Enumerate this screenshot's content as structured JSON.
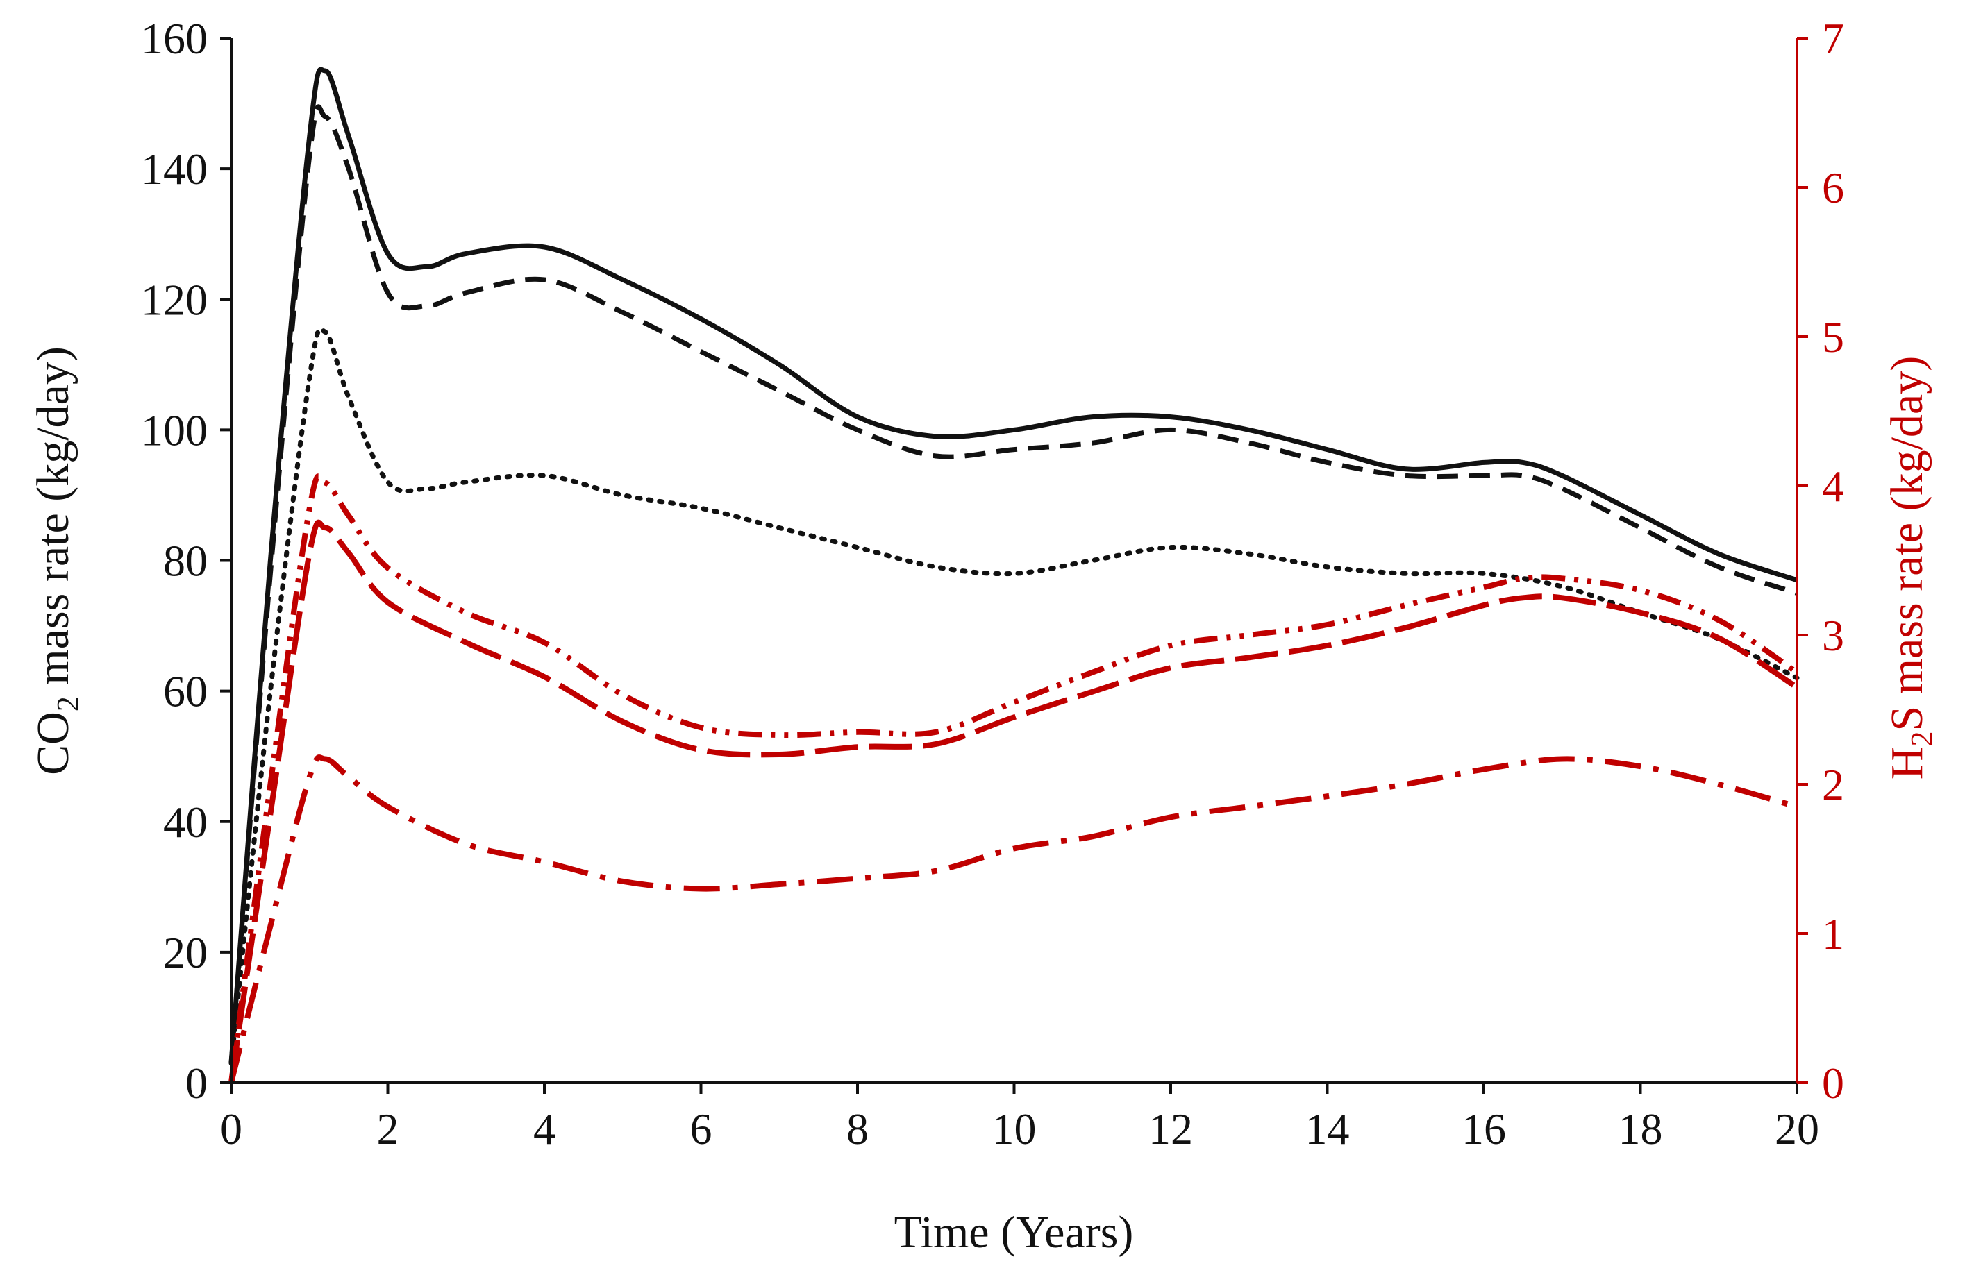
{
  "colors": {
    "co2": "#111111",
    "h2s": "#c00000"
  },
  "chart_data": {
    "type": "line",
    "title": "",
    "xlabel": "Time (Years)",
    "ylabel_left": {
      "prefix": "CO",
      "sub": "2",
      "suffix": " mass rate (kg/day)"
    },
    "ylabel_right": {
      "prefix": "H",
      "sub": "2",
      "suffix": "S mass rate (kg/day)"
    },
    "xlim": [
      0,
      20
    ],
    "ylim_left": [
      0,
      160
    ],
    "ylim_right": [
      0,
      7
    ],
    "xticks": [
      0,
      2,
      4,
      6,
      8,
      10,
      12,
      14,
      16,
      18,
      20
    ],
    "yticks_left": [
      0,
      20,
      40,
      60,
      80,
      100,
      120,
      140,
      160
    ],
    "yticks_right": [
      0,
      1,
      2,
      3,
      4,
      5,
      6,
      7
    ],
    "grid": false,
    "series": [
      {
        "name": "co2-solid",
        "axis": "left",
        "color": "#111111",
        "dash": "solid",
        "x": [
          0,
          0.5,
          1.0,
          1.2,
          1.5,
          2.0,
          2.5,
          3.0,
          4.0,
          5.0,
          6.0,
          7.0,
          8.0,
          9.0,
          10.0,
          11.0,
          12.0,
          13.0,
          14.0,
          15.0,
          16.0,
          16.5,
          17.0,
          18.0,
          19.0,
          20.0
        ],
        "y": [
          3,
          80,
          145,
          155,
          145,
          127,
          125,
          127,
          128,
          123,
          117,
          110,
          102,
          99,
          100,
          102,
          102,
          100,
          97,
          94,
          95,
          95,
          93,
          87,
          81,
          77
        ]
      },
      {
        "name": "co2-dashed",
        "axis": "left",
        "color": "#111111",
        "dash": "dashed",
        "x": [
          0,
          0.5,
          1.0,
          1.2,
          1.5,
          2.0,
          2.5,
          3.0,
          4.0,
          5.0,
          6.0,
          7.0,
          8.0,
          9.0,
          10.0,
          11.0,
          12.0,
          13.0,
          14.0,
          15.0,
          16.0,
          16.5,
          17.0,
          18.0,
          19.0,
          20.0
        ],
        "y": [
          3,
          78,
          142,
          148,
          140,
          121,
          119,
          121,
          123,
          118,
          112,
          106,
          100,
          96,
          97,
          98,
          100,
          98,
          95,
          93,
          93,
          93,
          91,
          85,
          79,
          75
        ]
      },
      {
        "name": "co2-dotted",
        "axis": "left",
        "color": "#111111",
        "dash": "dotted",
        "x": [
          0,
          0.5,
          1.0,
          1.2,
          1.5,
          2.0,
          2.5,
          3.0,
          4.0,
          5.0,
          6.0,
          7.0,
          8.0,
          9.0,
          10.0,
          11.0,
          12.0,
          13.0,
          14.0,
          15.0,
          16.0,
          17.0,
          18.0,
          19.0,
          20.0
        ],
        "y": [
          3,
          60,
          108,
          115,
          105,
          92,
          91,
          92,
          93,
          90,
          88,
          85,
          82,
          79,
          78,
          80,
          82,
          81,
          79,
          78,
          78,
          76,
          72,
          68,
          62
        ]
      },
      {
        "name": "h2s-dashdotdot",
        "axis": "right",
        "color": "#c00000",
        "dash": "dashdotdot",
        "x": [
          0,
          0.5,
          1.0,
          1.2,
          1.5,
          2.0,
          3.0,
          4.0,
          5.0,
          6.0,
          7.0,
          8.0,
          9.0,
          10.0,
          11.0,
          12.0,
          13.0,
          14.0,
          15.0,
          16.0,
          16.5,
          17.0,
          18.0,
          19.0,
          20.0
        ],
        "y": [
          0,
          2.0,
          3.85,
          4.02,
          3.8,
          3.45,
          3.15,
          2.95,
          2.6,
          2.38,
          2.33,
          2.35,
          2.35,
          2.55,
          2.75,
          2.93,
          3.0,
          3.07,
          3.2,
          3.32,
          3.38,
          3.38,
          3.3,
          3.1,
          2.75
        ]
      },
      {
        "name": "h2s-longdash",
        "axis": "right",
        "color": "#c00000",
        "dash": "longdash",
        "x": [
          0,
          0.5,
          1.0,
          1.2,
          1.5,
          2.0,
          3.0,
          4.0,
          5.0,
          6.0,
          7.0,
          8.0,
          9.0,
          10.0,
          11.0,
          12.0,
          13.0,
          14.0,
          15.0,
          16.0,
          16.5,
          17.0,
          18.0,
          19.0,
          20.0
        ],
        "y": [
          0,
          1.8,
          3.55,
          3.72,
          3.55,
          3.22,
          2.95,
          2.72,
          2.42,
          2.23,
          2.2,
          2.25,
          2.27,
          2.45,
          2.62,
          2.78,
          2.85,
          2.93,
          3.05,
          3.2,
          3.25,
          3.25,
          3.15,
          2.98,
          2.65
        ]
      },
      {
        "name": "h2s-dashdot",
        "axis": "right",
        "color": "#c00000",
        "dash": "dashdot",
        "x": [
          0,
          0.5,
          1.0,
          1.2,
          1.5,
          2.0,
          3.0,
          4.0,
          5.0,
          6.0,
          7.0,
          8.0,
          9.0,
          10.0,
          11.0,
          12.0,
          13.0,
          14.0,
          15.0,
          16.0,
          17.0,
          18.0,
          19.0,
          20.0
        ],
        "y": [
          0,
          1.05,
          2.05,
          2.17,
          2.05,
          1.85,
          1.6,
          1.48,
          1.35,
          1.3,
          1.33,
          1.37,
          1.42,
          1.57,
          1.65,
          1.78,
          1.85,
          1.92,
          2.0,
          2.1,
          2.17,
          2.12,
          2.0,
          1.85
        ]
      }
    ]
  }
}
